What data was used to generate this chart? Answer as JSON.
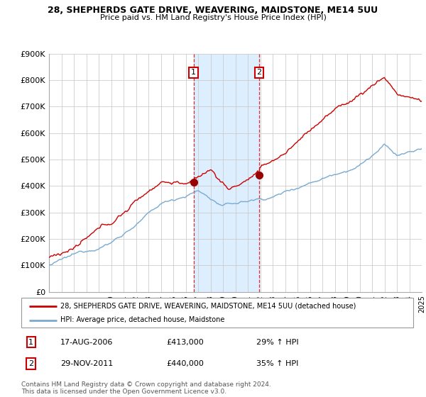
{
  "title": "28, SHEPHERDS GATE DRIVE, WEAVERING, MAIDSTONE, ME14 5UU",
  "subtitle": "Price paid vs. HM Land Registry's House Price Index (HPI)",
  "legend_property": "28, SHEPHERDS GATE DRIVE, WEAVERING, MAIDSTONE, ME14 5UU (detached house)",
  "legend_hpi": "HPI: Average price, detached house, Maidstone",
  "sale1_date": "17-AUG-2006",
  "sale1_price": 413000,
  "sale1_pct": "29%",
  "sale2_date": "29-NOV-2011",
  "sale2_price": 440000,
  "sale2_pct": "35%",
  "footer": "Contains HM Land Registry data © Crown copyright and database right 2024.\nThis data is licensed under the Open Government Licence v3.0.",
  "ylim": [
    0,
    900000
  ],
  "ytick_vals": [
    0,
    100000,
    200000,
    300000,
    400000,
    500000,
    600000,
    700000,
    800000,
    900000
  ],
  "ytick_labels": [
    "£0",
    "£100K",
    "£200K",
    "£300K",
    "£400K",
    "£500K",
    "£600K",
    "£700K",
    "£800K",
    "£900K"
  ],
  "property_color": "#cc0000",
  "hpi_color": "#7AAAD0",
  "shade_color": "#ddeeff",
  "point_color": "#990000",
  "sale1_x_year": 2006.63,
  "sale2_x_year": 2011.91,
  "background_color": "#ffffff",
  "grid_color": "#cccccc",
  "xlim_start": 1995,
  "xlim_end": 2025
}
